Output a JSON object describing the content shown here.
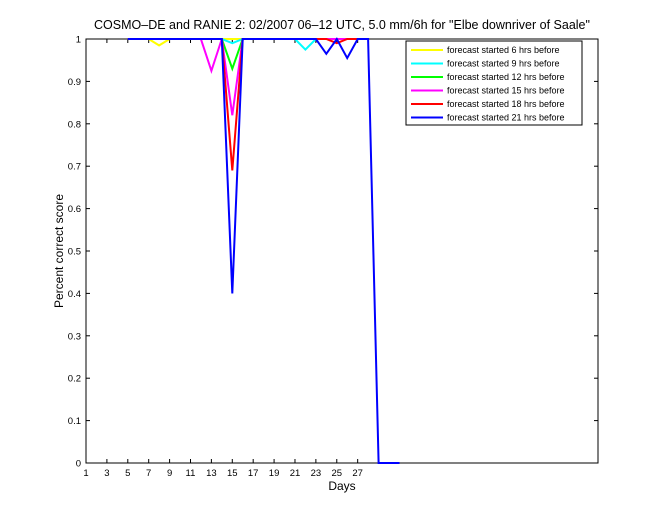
{
  "chart_data": {
    "type": "line",
    "title": "COSMO–DE and RANIE 2: 02/2007 06–12 UTC, 5.0 mm/6h for \"Elbe downriver of Saale\"",
    "xlabel": "Days",
    "ylabel": "Percent correct score",
    "xlim": [
      1,
      50
    ],
    "ylim": [
      0,
      1
    ],
    "x_ticks": [
      1,
      3,
      5,
      7,
      9,
      11,
      13,
      15,
      17,
      19,
      21,
      23,
      25,
      27
    ],
    "x_tick_labels": [
      "1",
      "3",
      "5",
      "7",
      "9",
      "11",
      "13",
      "15",
      "17",
      "19",
      "21",
      "23",
      "25",
      "27"
    ],
    "y_ticks": [
      0,
      0.1,
      0.2,
      0.3,
      0.4,
      0.5,
      0.6,
      0.7,
      0.8,
      0.9,
      1
    ],
    "y_tick_labels": [
      "0",
      "0.1",
      "0.2",
      "0.3",
      "0.4",
      "0.5",
      "0.6",
      "0.7",
      "0.8",
      "0.9",
      "1"
    ],
    "grid": false,
    "legend_position": "top-right",
    "series": [
      {
        "name": "forecast started 6 hrs before",
        "color": "#ffff00",
        "x": [
          5,
          6,
          7,
          8,
          9,
          10,
          11,
          12,
          13,
          14,
          15,
          16,
          17,
          18,
          19,
          20,
          21,
          22,
          23,
          24,
          25,
          26,
          27,
          28
        ],
        "y": [
          1,
          1,
          1,
          0.985,
          1,
          1,
          1,
          1,
          1,
          1,
          1,
          1,
          1,
          1,
          1,
          1,
          1,
          1,
          1,
          1,
          1,
          1,
          1,
          1
        ]
      },
      {
        "name": "forecast started 9 hrs before",
        "color": "#00ffff",
        "x": [
          5,
          6,
          7,
          8,
          9,
          10,
          11,
          12,
          13,
          14,
          15,
          16,
          17,
          18,
          19,
          20,
          21,
          22,
          23,
          24,
          25,
          26,
          27,
          28
        ],
        "y": [
          1,
          1,
          1,
          1,
          1,
          1,
          1,
          1,
          1,
          1,
          0.99,
          1,
          1,
          1,
          1,
          1,
          1,
          0.975,
          1,
          1,
          1,
          1,
          1,
          1
        ]
      },
      {
        "name": "forecast started 12 hrs before",
        "color": "#00ff00",
        "x": [
          5,
          6,
          7,
          8,
          9,
          10,
          11,
          12,
          13,
          14,
          15,
          16,
          17,
          18,
          19,
          20,
          21,
          22,
          23,
          24,
          25,
          26,
          27,
          28
        ],
        "y": [
          1,
          1,
          1,
          1,
          1,
          1,
          1,
          1,
          1,
          1,
          0.93,
          1,
          1,
          1,
          1,
          1,
          1,
          1,
          1,
          1,
          1,
          1,
          1,
          1
        ]
      },
      {
        "name": "forecast started 15 hrs before",
        "color": "#ff00ff",
        "x": [
          5,
          6,
          7,
          8,
          9,
          10,
          11,
          12,
          13,
          14,
          15,
          16,
          17,
          18,
          19,
          20,
          21,
          22,
          23,
          24,
          25,
          26,
          27,
          28
        ],
        "y": [
          1,
          1,
          1,
          1,
          1,
          1,
          1,
          1,
          0.925,
          1,
          0.82,
          1,
          1,
          1,
          1,
          1,
          1,
          1,
          1,
          1,
          1,
          1,
          1,
          1
        ]
      },
      {
        "name": "forecast started 18 hrs before",
        "color": "#ff0000",
        "x": [
          5,
          6,
          7,
          8,
          9,
          10,
          11,
          12,
          13,
          14,
          15,
          16,
          17,
          18,
          19,
          20,
          21,
          22,
          23,
          24,
          25,
          26,
          27,
          28
        ],
        "y": [
          1,
          1,
          1,
          1,
          1,
          1,
          1,
          1,
          1,
          1,
          0.69,
          1,
          1,
          1,
          1,
          1,
          1,
          1,
          1,
          1,
          0.99,
          1,
          1,
          1
        ]
      },
      {
        "name": "forecast started 21 hrs before",
        "color": "#0000ff",
        "x": [
          5,
          6,
          7,
          8,
          9,
          10,
          11,
          12,
          13,
          14,
          15,
          16,
          17,
          18,
          19,
          20,
          21,
          22,
          23,
          24,
          25,
          26,
          27,
          28,
          29,
          30,
          31
        ],
        "y": [
          1,
          1,
          1,
          1,
          1,
          1,
          1,
          1,
          1,
          1,
          0.4,
          1,
          1,
          1,
          1,
          1,
          1,
          1,
          1,
          0.965,
          1,
          0.955,
          1,
          1,
          0,
          0,
          0
        ]
      }
    ]
  }
}
